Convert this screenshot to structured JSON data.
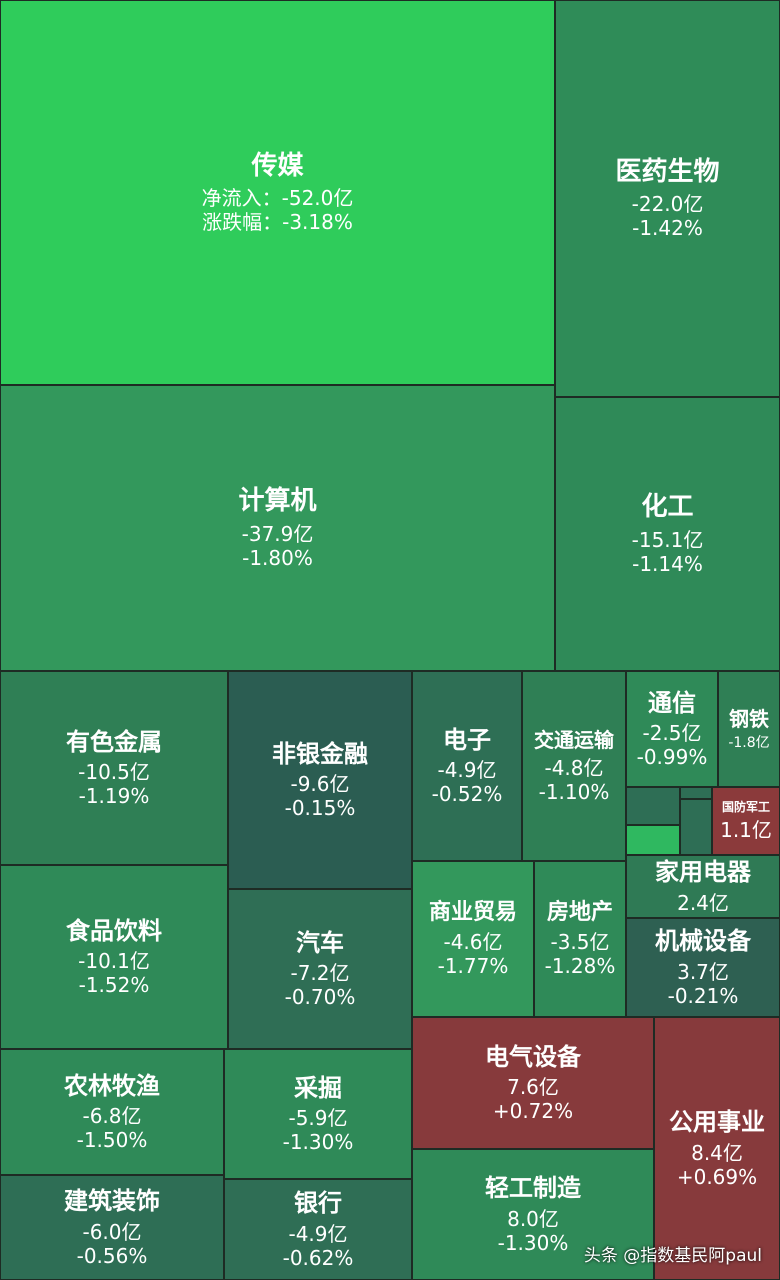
{
  "tiles": [
    {
      "name": "传媒",
      "flow": "净流入：-52.0亿",
      "change": "涨跌幅：-3.18%",
      "color": "#2fcc5b"
    },
    {
      "name": "医药生物",
      "flow": "-22.0亿",
      "change": "-1.42%",
      "color": "#2f8c58"
    },
    {
      "name": "计算机",
      "flow": "-37.9亿",
      "change": "-1.80%",
      "color": "#33985c"
    },
    {
      "name": "化工",
      "flow": "-15.1亿",
      "change": "-1.14%",
      "color": "#2f8a58"
    },
    {
      "name": "有色金属",
      "flow": "-10.5亿",
      "change": "-1.19%",
      "color": "#2f7f55"
    },
    {
      "name": "非银金融",
      "flow": "-9.6亿",
      "change": "-0.15%",
      "color": "#2b5d52"
    },
    {
      "name": "电子",
      "flow": "-4.9亿",
      "change": "-0.52%",
      "color": "#2e6f55"
    },
    {
      "name": "交通运输",
      "flow": "-4.8亿",
      "change": "-1.10%",
      "color": "#2f7f55"
    },
    {
      "name": "通信",
      "flow": "-2.5亿",
      "change": "-0.99%",
      "color": "#2f8a58"
    },
    {
      "name": "钢铁",
      "flow": "-1.8亿",
      "color": "#2f7f55"
    },
    {
      "name": "国防军工",
      "flow": "1.1亿",
      "color": "#8b3a3b"
    },
    {
      "name": "家用电器",
      "flow": "2.4亿",
      "color": "#2f7a55"
    },
    {
      "name": "食品饮料",
      "flow": "-10.1亿",
      "change": "-1.52%",
      "color": "#2f8a58"
    },
    {
      "name": "汽车",
      "flow": "-7.2亿",
      "change": "-0.70%",
      "color": "#2f6e55"
    },
    {
      "name": "商业贸易",
      "flow": "-4.6亿",
      "change": "-1.77%",
      "color": "#33985c"
    },
    {
      "name": "房地产",
      "flow": "-3.5亿",
      "change": "-1.28%",
      "color": "#2f8a58"
    },
    {
      "name": "机械设备",
      "flow": "3.7亿",
      "change": "-0.21%",
      "color": "#2e6052"
    },
    {
      "name": "电气设备",
      "flow": "7.6亿",
      "change": "+0.72%",
      "color": "#873a3c"
    },
    {
      "name": "公用事业",
      "flow": "8.4亿",
      "change": "+0.69%",
      "color": "#873a3c"
    },
    {
      "name": "农林牧渔",
      "flow": "-6.8亿",
      "change": "-1.50%",
      "color": "#2f8a58"
    },
    {
      "name": "采掘",
      "flow": "-5.9亿",
      "change": "-1.30%",
      "color": "#2f8a58"
    },
    {
      "name": "轻工制造",
      "flow": "8.0亿",
      "change": "-1.30%",
      "color": "#2f8a58"
    },
    {
      "name": "建筑装饰",
      "flow": "-6.0亿",
      "change": "-0.56%",
      "color": "#2e6e55"
    },
    {
      "name": "银行",
      "flow": "-4.9亿",
      "change": "-0.62%",
      "color": "#2f6e55"
    }
  ],
  "watermark": "头条 @指数基民阿paul"
}
